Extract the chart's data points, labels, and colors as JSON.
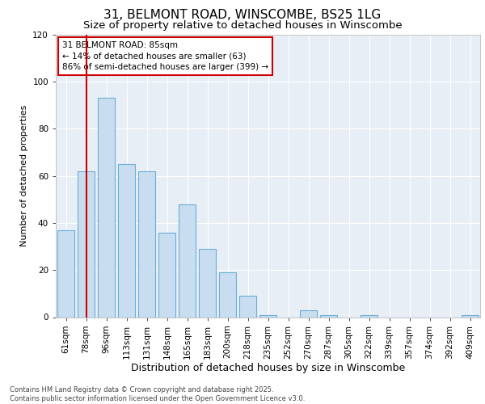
{
  "title1": "31, BELMONT ROAD, WINSCOMBE, BS25 1LG",
  "title2": "Size of property relative to detached houses in Winscombe",
  "xlabel": "Distribution of detached houses by size in Winscombe",
  "ylabel": "Number of detached properties",
  "categories": [
    "61sqm",
    "78sqm",
    "96sqm",
    "113sqm",
    "131sqm",
    "148sqm",
    "165sqm",
    "183sqm",
    "200sqm",
    "218sqm",
    "235sqm",
    "252sqm",
    "270sqm",
    "287sqm",
    "305sqm",
    "322sqm",
    "339sqm",
    "357sqm",
    "374sqm",
    "392sqm",
    "409sqm"
  ],
  "values": [
    37,
    62,
    93,
    65,
    62,
    36,
    48,
    29,
    19,
    9,
    1,
    0,
    3,
    1,
    0,
    1,
    0,
    0,
    0,
    0,
    1
  ],
  "bar_color": "#c9ddf0",
  "bar_edge_color": "#6aaed6",
  "vline_x": 1.0,
  "vline_color": "#cc0000",
  "annotation_line1": "31 BELMONT ROAD: 85sqm",
  "annotation_line2": "← 14% of detached houses are smaller (63)",
  "annotation_line3": "86% of semi-detached houses are larger (399) →",
  "annotation_box_color": "#ffffff",
  "annotation_box_edge": "#cc0000",
  "ylim": [
    0,
    120
  ],
  "yticks": [
    0,
    20,
    40,
    60,
    80,
    100,
    120
  ],
  "footnote1": "Contains HM Land Registry data © Crown copyright and database right 2025.",
  "footnote2": "Contains public sector information licensed under the Open Government Licence v3.0.",
  "bg_color": "#e8eef5",
  "grid_color": "#ffffff",
  "title1_fontsize": 11,
  "title2_fontsize": 9.5,
  "xlabel_fontsize": 9,
  "ylabel_fontsize": 8,
  "tick_fontsize": 7.5,
  "annot_fontsize": 7.5,
  "footnote_fontsize": 6.0
}
